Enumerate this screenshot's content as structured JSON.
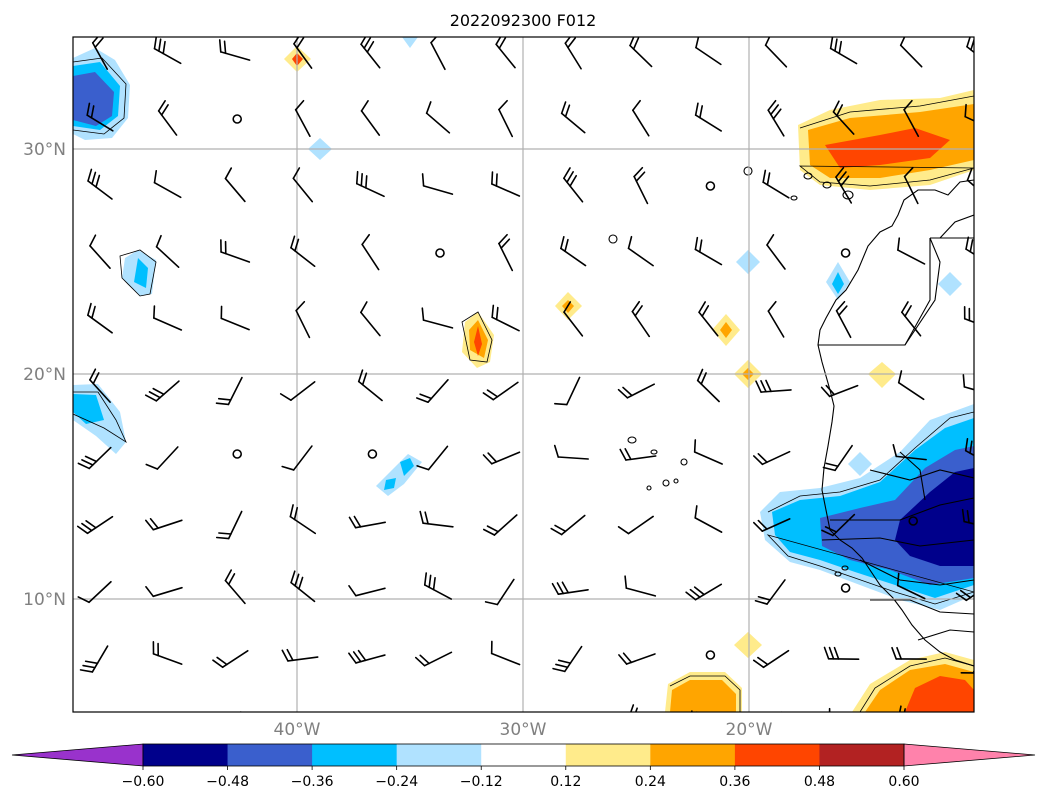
{
  "title": "2022092300 F012",
  "map": {
    "lat_labels": [
      "30°N",
      "20°N",
      "10°N"
    ],
    "lon_labels": [
      "40°W",
      "30°W",
      "20°W"
    ],
    "lat_values": [
      30,
      20,
      10
    ],
    "lon_values": [
      -40,
      -30,
      -20
    ],
    "extent": {
      "lon_min": -50,
      "lon_max": -10,
      "lat_min": 5,
      "lat_max": 35
    },
    "gridlines": true,
    "features": [
      "coastline",
      "country-borders",
      "wind-barbs",
      "filled-contours"
    ]
  },
  "colorbar": {
    "labels": [
      "−0.60",
      "−0.48",
      "−0.36",
      "−0.24",
      "−0.12",
      "0.12",
      "0.24",
      "0.36",
      "0.48",
      "0.60"
    ],
    "levels": [
      -0.6,
      -0.48,
      -0.36,
      -0.24,
      -0.12,
      0.12,
      0.24,
      0.36,
      0.48,
      0.6
    ],
    "colors": [
      "#9932cc",
      "#00008b",
      "#3a5fcd",
      "#00bfff",
      "#b0e2ff",
      "#ffffff",
      "#ffeb8b",
      "#ffa500",
      "#ff4500",
      "#b22222",
      "#ff82ab"
    ],
    "extend": "both"
  }
}
